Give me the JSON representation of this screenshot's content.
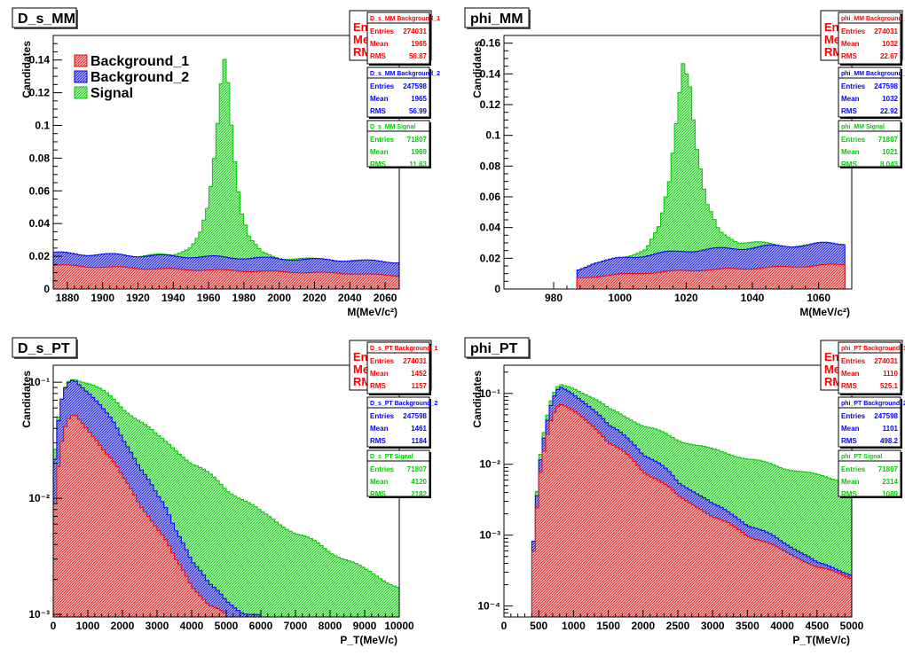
{
  "colors": {
    "bkg1": "#ff0000",
    "bkg2": "#0000ff",
    "signal": "#00cc00",
    "bkg1_fill": "#c8a0a0",
    "bkg2_fill": "#8888cc",
    "signal_fill": "#88ee88"
  },
  "legend": {
    "labels": [
      "Background_1",
      "Background_2",
      "Signal"
    ]
  },
  "chart_data": [
    {
      "name": "D_s_MM",
      "type": "histogram",
      "title": "D_s_MM",
      "xlabel": "M(MeV/c²)",
      "ylabel": "Candidates",
      "xlim": [
        1872,
        2068
      ],
      "ylim": [
        0,
        0.155
      ],
      "log": false,
      "xticks": [
        1880,
        1900,
        1920,
        1940,
        1960,
        1980,
        2000,
        2020,
        2040,
        2060
      ],
      "xtick_labels": [
        "1880",
        "1900",
        "1920",
        "1940",
        "1960",
        "1980",
        "2000",
        "2020",
        "2040",
        "2060"
      ],
      "yticks": [
        0,
        0.02,
        0.04,
        0.06,
        0.08,
        0.1,
        0.12,
        0.14
      ],
      "ytick_labels": [
        "0",
        "0.02",
        "0.04",
        "0.06",
        "0.08",
        "0.1",
        "0.12",
        "0.14"
      ],
      "stats": [
        {
          "title": "D_s_MM Background_1",
          "entries": "274031",
          "mean": "1965",
          "rms": "56.87"
        },
        {
          "title": "D_s_MM Background_2",
          "entries": "247598",
          "mean": "1965",
          "rms": "56.99"
        },
        {
          "title": "D_s_MM Signal",
          "entries": "71807",
          "mean": "1969",
          "rms": "11.63"
        }
      ],
      "series": [
        {
          "name": "Background_1",
          "points": [
            [
              1872,
              0.0145
            ],
            [
              1900,
              0.0135
            ],
            [
              1940,
              0.012
            ],
            [
              1965,
              0.0115
            ],
            [
              2000,
              0.0105
            ],
            [
              2040,
              0.0095
            ],
            [
              2068,
              0.008
            ]
          ]
        },
        {
          "name": "Background_2",
          "points": [
            [
              1872,
              0.022
            ],
            [
              1900,
              0.021
            ],
            [
              1940,
              0.02
            ],
            [
              1965,
              0.0195
            ],
            [
              2000,
              0.0185
            ],
            [
              2040,
              0.0175
            ],
            [
              2068,
              0.0165
            ]
          ]
        },
        {
          "name": "Signal",
          "points": [
            [
              1872,
              0.021
            ],
            [
              1920,
              0.02
            ],
            [
              1940,
              0.021
            ],
            [
              1950,
              0.026
            ],
            [
              1955,
              0.033
            ],
            [
              1960,
              0.05
            ],
            [
              1964,
              0.085
            ],
            [
              1967,
              0.125
            ],
            [
              1969,
              0.143
            ],
            [
              1971,
              0.13
            ],
            [
              1974,
              0.09
            ],
            [
              1978,
              0.05
            ],
            [
              1983,
              0.031
            ],
            [
              1990,
              0.022
            ],
            [
              2000,
              0.019
            ],
            [
              2068,
              0.016
            ]
          ]
        }
      ]
    },
    {
      "name": "phi_MM",
      "type": "histogram",
      "title": "phi_MM",
      "xlabel": "M(MeV/c²)",
      "ylabel": "Candidates",
      "xlim": [
        965,
        1070
      ],
      "ylim": [
        0,
        0.165
      ],
      "log": false,
      "xticks": [
        980,
        1000,
        1020,
        1040,
        1060
      ],
      "xtick_labels": [
        "980",
        "1000",
        "1020",
        "1040",
        "1060"
      ],
      "yticks": [
        0,
        0.02,
        0.04,
        0.06,
        0.08,
        0.1,
        0.12,
        0.14,
        0.16
      ],
      "ytick_labels": [
        "0",
        "0.02",
        "0.04",
        "0.06",
        "0.08",
        "0.1",
        "0.12",
        "0.14",
        "0.16"
      ],
      "stats": [
        {
          "title": "phi_MM Background_1",
          "entries": "274031",
          "mean": "1032",
          "rms": "22.67"
        },
        {
          "title": "phi_MM Background_2",
          "entries": "247598",
          "mean": "1032",
          "rms": "22.92"
        },
        {
          "title": "phi_MM Signal",
          "entries": "71807",
          "mean": "1021",
          "rms": "8.043"
        }
      ],
      "series": [
        {
          "name": "Background_1",
          "points": [
            [
              987,
              0.007
            ],
            [
              1000,
              0.0095
            ],
            [
              1020,
              0.012
            ],
            [
              1040,
              0.0135
            ],
            [
              1068,
              0.016
            ]
          ]
        },
        {
          "name": "Background_2",
          "points": [
            [
              987,
              0.012
            ],
            [
              992,
              0.017
            ],
            [
              1000,
              0.02
            ],
            [
              1020,
              0.025
            ],
            [
              1040,
              0.027
            ],
            [
              1068,
              0.03
            ]
          ]
        },
        {
          "name": "Signal",
          "points": [
            [
              987,
              0.011
            ],
            [
              1000,
              0.02
            ],
            [
              1008,
              0.026
            ],
            [
              1012,
              0.04
            ],
            [
              1015,
              0.07
            ],
            [
              1017,
              0.11
            ],
            [
              1019,
              0.153
            ],
            [
              1021,
              0.14
            ],
            [
              1023,
              0.095
            ],
            [
              1026,
              0.055
            ],
            [
              1030,
              0.037
            ],
            [
              1036,
              0.031
            ],
            [
              1045,
              0.029
            ],
            [
              1068,
              0.027
            ]
          ]
        }
      ]
    },
    {
      "name": "D_s_PT",
      "type": "histogram",
      "title": "D_s_PT",
      "xlabel": "P_T(MeV/c)",
      "ylabel": "Candidates",
      "xlim": [
        0,
        10000
      ],
      "ylim": [
        0.00095,
        0.14
      ],
      "log": true,
      "xticks": [
        0,
        1000,
        2000,
        3000,
        4000,
        5000,
        6000,
        7000,
        8000,
        9000,
        10000
      ],
      "xtick_labels": [
        "0",
        "1000",
        "2000",
        "3000",
        "4000",
        "5000",
        "6000",
        "7000",
        "8000",
        "9000",
        "10000"
      ],
      "yticks": [
        0.001,
        0.01,
        0.1
      ],
      "ytick_labels": [
        "10⁻³",
        "10⁻²",
        "10⁻¹"
      ],
      "stats": [
        {
          "title": "D_s_PT Background_1",
          "entries": "274031",
          "mean": "1452",
          "rms": "1157"
        },
        {
          "title": "D_s_PT Background_2",
          "entries": "247598",
          "mean": "1461",
          "rms": "1184"
        },
        {
          "title": "D_s_PT Signal",
          "entries": "71807",
          "mean": "4120",
          "rms": "2182"
        }
      ],
      "series": [
        {
          "name": "Background_1",
          "points": [
            [
              0,
              0.006
            ],
            [
              100,
              0.012
            ],
            [
              200,
              0.025
            ],
            [
              400,
              0.045
            ],
            [
              600,
              0.052
            ],
            [
              1000,
              0.04
            ],
            [
              1500,
              0.025
            ],
            [
              2000,
              0.015
            ],
            [
              2500,
              0.009
            ],
            [
              3000,
              0.0055
            ],
            [
              3500,
              0.003
            ],
            [
              4000,
              0.0018
            ],
            [
              4500,
              0.0012
            ],
            [
              5000,
              0.00097
            ]
          ]
        },
        {
          "name": "Background_2",
          "points": [
            [
              0,
              0.012
            ],
            [
              100,
              0.03
            ],
            [
              200,
              0.06
            ],
            [
              400,
              0.095
            ],
            [
              600,
              0.105
            ],
            [
              1000,
              0.085
            ],
            [
              1500,
              0.055
            ],
            [
              2000,
              0.032
            ],
            [
              2500,
              0.019
            ],
            [
              3000,
              0.0105
            ],
            [
              3500,
              0.0055
            ],
            [
              4000,
              0.003
            ],
            [
              4500,
              0.0018
            ],
            [
              5000,
              0.0013
            ],
            [
              5500,
              0.00105
            ],
            [
              6000,
              0.00096
            ]
          ]
        },
        {
          "name": "Signal",
          "points": [
            [
              0,
              0.014
            ],
            [
              200,
              0.06
            ],
            [
              400,
              0.1
            ],
            [
              600,
              0.11
            ],
            [
              1000,
              0.1
            ],
            [
              2000,
              0.06
            ],
            [
              3000,
              0.034
            ],
            [
              4000,
              0.02
            ],
            [
              5000,
              0.012
            ],
            [
              6000,
              0.0075
            ],
            [
              7000,
              0.005
            ],
            [
              8000,
              0.0035
            ],
            [
              9000,
              0.0024
            ],
            [
              10000,
              0.0017
            ]
          ]
        }
      ]
    },
    {
      "name": "phi_PT",
      "type": "histogram",
      "title": "phi_PT",
      "xlabel": "P_T(MeV/c)",
      "ylabel": "Candidates",
      "xlim": [
        0,
        5000
      ],
      "ylim": [
        7e-05,
        0.25
      ],
      "log": true,
      "xticks": [
        0,
        500,
        1000,
        1500,
        2000,
        2500,
        3000,
        3500,
        4000,
        4500,
        5000
      ],
      "xtick_labels": [
        "0",
        "500",
        "1000",
        "1500",
        "2000",
        "2500",
        "3000",
        "3500",
        "4000",
        "4500",
        "5000"
      ],
      "yticks": [
        0.0001,
        0.001,
        0.01,
        0.1
      ],
      "ytick_labels": [
        "10⁻⁴",
        "10⁻³",
        "10⁻²",
        "10⁻¹"
      ],
      "stats": [
        {
          "title": "phi_PT Background_1",
          "entries": "274031",
          "mean": "1110",
          "rms": "525.1"
        },
        {
          "title": "phi_PT Background_2",
          "entries": "247598",
          "mean": "1101",
          "rms": "498.2"
        },
        {
          "title": "phi_PT Signal",
          "entries": "71807",
          "mean": "2314",
          "rms": "1089"
        }
      ],
      "series": [
        {
          "name": "Background_1",
          "points": [
            [
              400,
              0.0002
            ],
            [
              450,
              0.001
            ],
            [
              500,
              0.004
            ],
            [
              600,
              0.02
            ],
            [
              700,
              0.05
            ],
            [
              800,
              0.07
            ],
            [
              1000,
              0.055
            ],
            [
              1500,
              0.02
            ],
            [
              2000,
              0.008
            ],
            [
              2500,
              0.0035
            ],
            [
              3000,
              0.0018
            ],
            [
              3500,
              0.001
            ],
            [
              4000,
              0.0006
            ],
            [
              4500,
              0.00035
            ],
            [
              5000,
              0.00025
            ]
          ]
        },
        {
          "name": "Background_2",
          "points": [
            [
              400,
              0.0002
            ],
            [
              450,
              0.0015
            ],
            [
              500,
              0.006
            ],
            [
              600,
              0.03
            ],
            [
              700,
              0.08
            ],
            [
              800,
              0.12
            ],
            [
              1000,
              0.095
            ],
            [
              1500,
              0.035
            ],
            [
              2000,
              0.014
            ],
            [
              2500,
              0.0055
            ],
            [
              3000,
              0.0027
            ],
            [
              3500,
              0.0014
            ],
            [
              4000,
              0.0008
            ],
            [
              4500,
              0.0004
            ],
            [
              5000,
              0.00028
            ]
          ]
        },
        {
          "name": "Signal",
          "points": [
            [
              400,
              0.0002
            ],
            [
              450,
              0.0015
            ],
            [
              500,
              0.007
            ],
            [
              600,
              0.035
            ],
            [
              700,
              0.09
            ],
            [
              800,
              0.13
            ],
            [
              1000,
              0.12
            ],
            [
              1500,
              0.06
            ],
            [
              2000,
              0.035
            ],
            [
              2500,
              0.022
            ],
            [
              3000,
              0.016
            ],
            [
              3500,
              0.012
            ],
            [
              4000,
              0.009
            ],
            [
              4500,
              0.007
            ],
            [
              5000,
              0.0055
            ]
          ]
        }
      ]
    }
  ]
}
